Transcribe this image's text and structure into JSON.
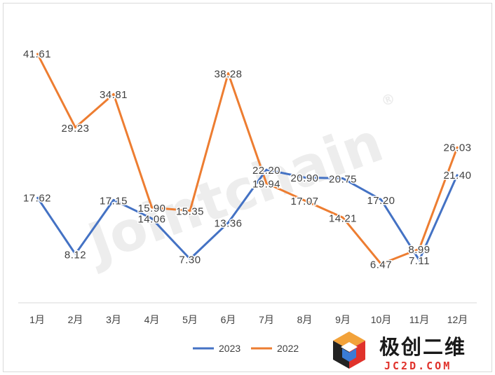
{
  "chart_data": {
    "type": "line",
    "categories": [
      "1月",
      "2月",
      "3月",
      "4月",
      "5月",
      "6月",
      "7月",
      "8月",
      "9月",
      "10月",
      "11月",
      "12月"
    ],
    "series": [
      {
        "name": "2023",
        "color": "#4472c4",
        "values": [
          17.62,
          8.12,
          17.15,
          14.06,
          7.3,
          13.36,
          22.2,
          20.9,
          20.75,
          17.2,
          7.11,
          21.4
        ],
        "labels": [
          "17.62",
          "8.12",
          "17.15",
          "14.06",
          "7.30",
          "13.36",
          "22.20",
          "20.90",
          "20.75",
          "17.20",
          "7.11",
          "21.40"
        ]
      },
      {
        "name": "2022",
        "color": "#ed7d31",
        "values": [
          41.61,
          29.23,
          34.81,
          15.9,
          15.35,
          38.28,
          19.94,
          17.07,
          14.21,
          6.47,
          8.99,
          26.03
        ],
        "labels": [
          "41.61",
          "29.23",
          "34.81",
          "15.90",
          "15.35",
          "38.28",
          "19.94",
          "17.07",
          "14.21",
          "6.47",
          "8.99",
          "26.03"
        ]
      }
    ],
    "ylim": [
      0,
      45
    ],
    "grid": false,
    "legend_position": "bottom"
  },
  "watermark": {
    "text": "Jointchain",
    "registered": "®"
  },
  "logo": {
    "name": "极创二维",
    "domain": "JC2D.COM"
  }
}
